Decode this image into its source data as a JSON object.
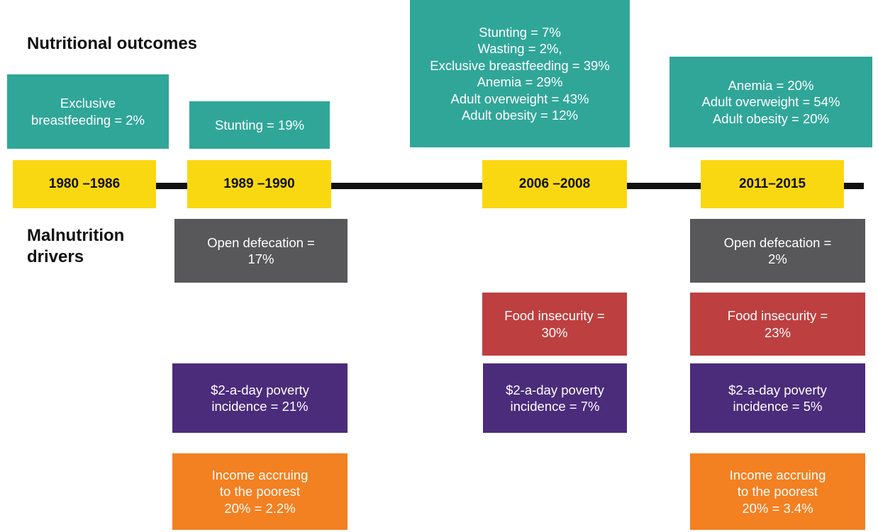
{
  "headings": {
    "outcomes": "Nutritional outcomes",
    "drivers": [
      "Malnutrition",
      "drivers"
    ]
  },
  "periods": [
    "1980 –1986",
    "1989 –1990",
    "2006 –2008",
    "2011–2015"
  ],
  "outcomes": [
    {
      "lines": [
        "Exclusive",
        "breastfeeding = 2%"
      ]
    },
    {
      "lines": [
        "Stunting = 19%"
      ]
    },
    {
      "lines": [
        "Stunting = 7%",
        "Wasting = 2%,",
        "Exclusive breastfeeding = 39%",
        "Anemia = 29%",
        "Adult overweight = 43%",
        "Adult obesity = 12%"
      ]
    },
    {
      "lines": [
        "Anemia = 20%",
        "Adult overweight = 54%",
        "Adult obesity = 20%"
      ]
    }
  ],
  "drivers": [
    {
      "lines": [
        "Open defecation =",
        "17%"
      ]
    },
    {
      "lines": [
        "Open defecation =",
        "2%"
      ]
    },
    {
      "lines": [
        "Food insecurity =",
        "30%"
      ]
    },
    {
      "lines": [
        "Food insecurity =",
        "23%"
      ]
    },
    {
      "lines": [
        "$2-a-day poverty",
        "incidence = 21%"
      ]
    },
    {
      "lines": [
        "$2-a-day poverty",
        "incidence = 7%"
      ]
    },
    {
      "lines": [
        "$2-a-day poverty",
        "incidence = 5%"
      ]
    },
    {
      "lines": [
        "Income accruing",
        "to the poorest",
        "20% = 2.2%"
      ]
    },
    {
      "lines": [
        "Income accruing",
        "to the poorest",
        "20% = 3.4%"
      ]
    }
  ]
}
